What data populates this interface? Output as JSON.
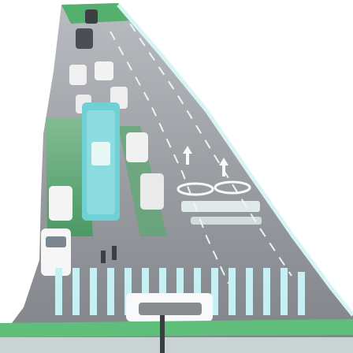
{
  "image": {
    "caption": "",
    "dominant_colors": {
      "background": "#ffffff",
      "road": "#8a8c90",
      "green_lane": "#4aa86a",
      "crosswalk_stripe": "#c8f0f4",
      "lane_marking": "#e8f6f6",
      "bus": "#6fd0d6",
      "car": "#f2f2f2"
    }
  }
}
